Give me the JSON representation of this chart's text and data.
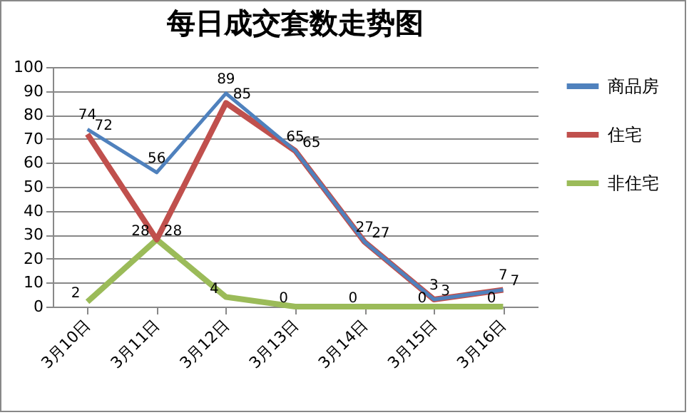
{
  "chart_data": {
    "type": "line",
    "title": "每日成交套数走势图",
    "categories": [
      "3月10日",
      "3月11日",
      "3月12日",
      "3月13日",
      "3月14日",
      "3月15日",
      "3月16日"
    ],
    "series": [
      {
        "name": "商品房",
        "color": "#4f81bd",
        "values": [
          74,
          56,
          89,
          65,
          27,
          3,
          7
        ]
      },
      {
        "name": "住宅",
        "color": "#c0504d",
        "values": [
          72,
          28,
          85,
          65,
          27,
          3,
          7
        ]
      },
      {
        "name": "非住宅",
        "color": "#9bbb59",
        "values": [
          2,
          28,
          4,
          0,
          0,
          0,
          0
        ]
      }
    ],
    "ylim": [
      0,
      100
    ],
    "yticks": [
      0,
      10,
      20,
      30,
      40,
      50,
      60,
      70,
      80,
      90,
      100
    ],
    "grid": "y",
    "legend": "right",
    "data_labels": true,
    "marker": "none",
    "line_style": "solid"
  }
}
